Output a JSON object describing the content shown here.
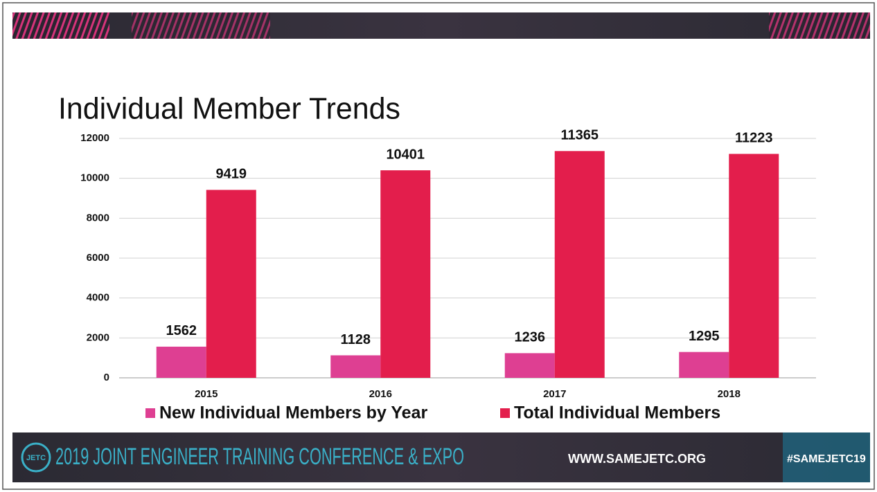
{
  "chart_data": {
    "type": "bar",
    "title": "Individual Member Trends",
    "categories": [
      "2015",
      "2016",
      "2017",
      "2018"
    ],
    "series": [
      {
        "name": "New Individual Members by Year",
        "color": "#de3f92",
        "values": [
          1562,
          1128,
          1236,
          1295
        ]
      },
      {
        "name": "Total Individual Members",
        "color": "#e31e4c",
        "values": [
          9419,
          10401,
          11365,
          11223
        ]
      }
    ],
    "ylim": [
      0,
      12000
    ],
    "yticks": [
      0,
      2000,
      4000,
      6000,
      8000,
      10000,
      12000
    ],
    "grid": true,
    "legend": "bottom"
  },
  "footer": {
    "logo": "JETC",
    "event": "2019 JOINT ENGINEER TRAINING CONFERENCE & EXPO",
    "website": "WWW.SAMEJETC.ORG",
    "hashtag": "#SAMEJETC19"
  }
}
